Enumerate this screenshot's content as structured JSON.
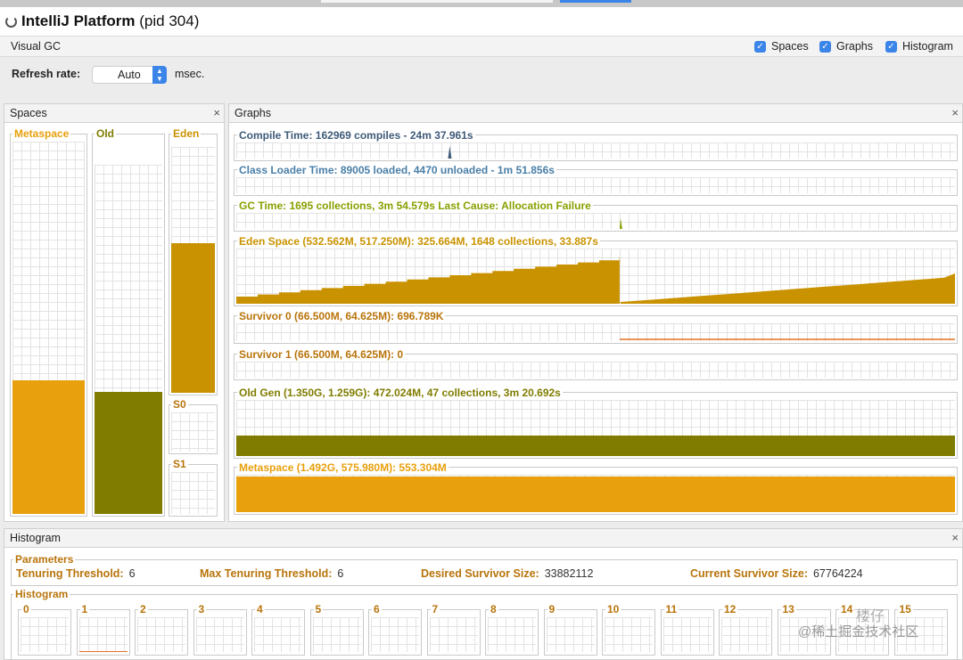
{
  "window": {
    "title_bold": "IntelliJ Platform",
    "title_rest": " (pid 304)"
  },
  "visual_gc": {
    "title": "Visual GC",
    "checkboxes": [
      {
        "label": "Spaces",
        "checked": true
      },
      {
        "label": "Graphs",
        "checked": true
      },
      {
        "label": "Histogram",
        "checked": true
      }
    ]
  },
  "refresh": {
    "label": "Refresh rate:",
    "value": "Auto",
    "unit": "msec."
  },
  "spaces": {
    "title": "Spaces",
    "close": "×",
    "metaspace": {
      "label": "Metaspace",
      "fill": 0.36,
      "color": "#e8a00c"
    },
    "old": {
      "label": "Old",
      "fill": 0.35,
      "color": "#807c00"
    },
    "eden": {
      "label": "Eden",
      "fill": 0.61,
      "color": "#c99200"
    },
    "s0": {
      "label": "S0",
      "fill": 0.0
    },
    "s1": {
      "label": "S1",
      "fill": 0.0
    }
  },
  "graphs": {
    "title": "Graphs",
    "close": "×",
    "compile": {
      "label": "Compile Time: 162969 compiles - 24m 37.961s",
      "color": "#3e5a78"
    },
    "classloader": {
      "label": "Class Loader Time: 89005 loaded, 4470 unloaded - 1m 51.856s",
      "color": "#4a7fa8"
    },
    "gc": {
      "label": "GC Time: 1695 collections, 3m 54.579s  Last Cause: Allocation Failure",
      "color": "#8aa000"
    },
    "eden": {
      "label": "Eden Space (532.562M, 517.250M): 325.664M, 1648 collections, 33.887s",
      "color": "#c99200"
    },
    "survivor0": {
      "label": "Survivor 0 (66.500M, 64.625M): 696.789K",
      "color": "#b8740b"
    },
    "survivor1": {
      "label": "Survivor 1 (66.500M, 64.625M): 0",
      "color": "#b8740b"
    },
    "oldgen": {
      "label": "Old Gen (1.350G, 1.259G): 472.024M, 47 collections, 3m 20.692s",
      "color": "#807c00"
    },
    "metaspace": {
      "label": "Metaspace (1.492G, 575.980M): 553.304M",
      "color": "#e8a00c"
    }
  },
  "histogram": {
    "title": "Histogram",
    "close": "×",
    "params_title": "Parameters",
    "params": [
      {
        "label": "Tenuring Threshold:",
        "value": "6"
      },
      {
        "label": "Max Tenuring Threshold:",
        "value": "6"
      },
      {
        "label": "Desired Survivor Size:",
        "value": "33882112"
      },
      {
        "label": "Current Survivor Size:",
        "value": "67764224"
      }
    ],
    "histo_title": "Histogram",
    "bins": [
      "0",
      "1",
      "2",
      "3",
      "4",
      "5",
      "6",
      "7",
      "8",
      "9",
      "10",
      "11",
      "12",
      "13",
      "14",
      "15"
    ]
  },
  "watermark": {
    "line1": "@稀土掘金技术社区",
    "line2": "楼仔"
  }
}
